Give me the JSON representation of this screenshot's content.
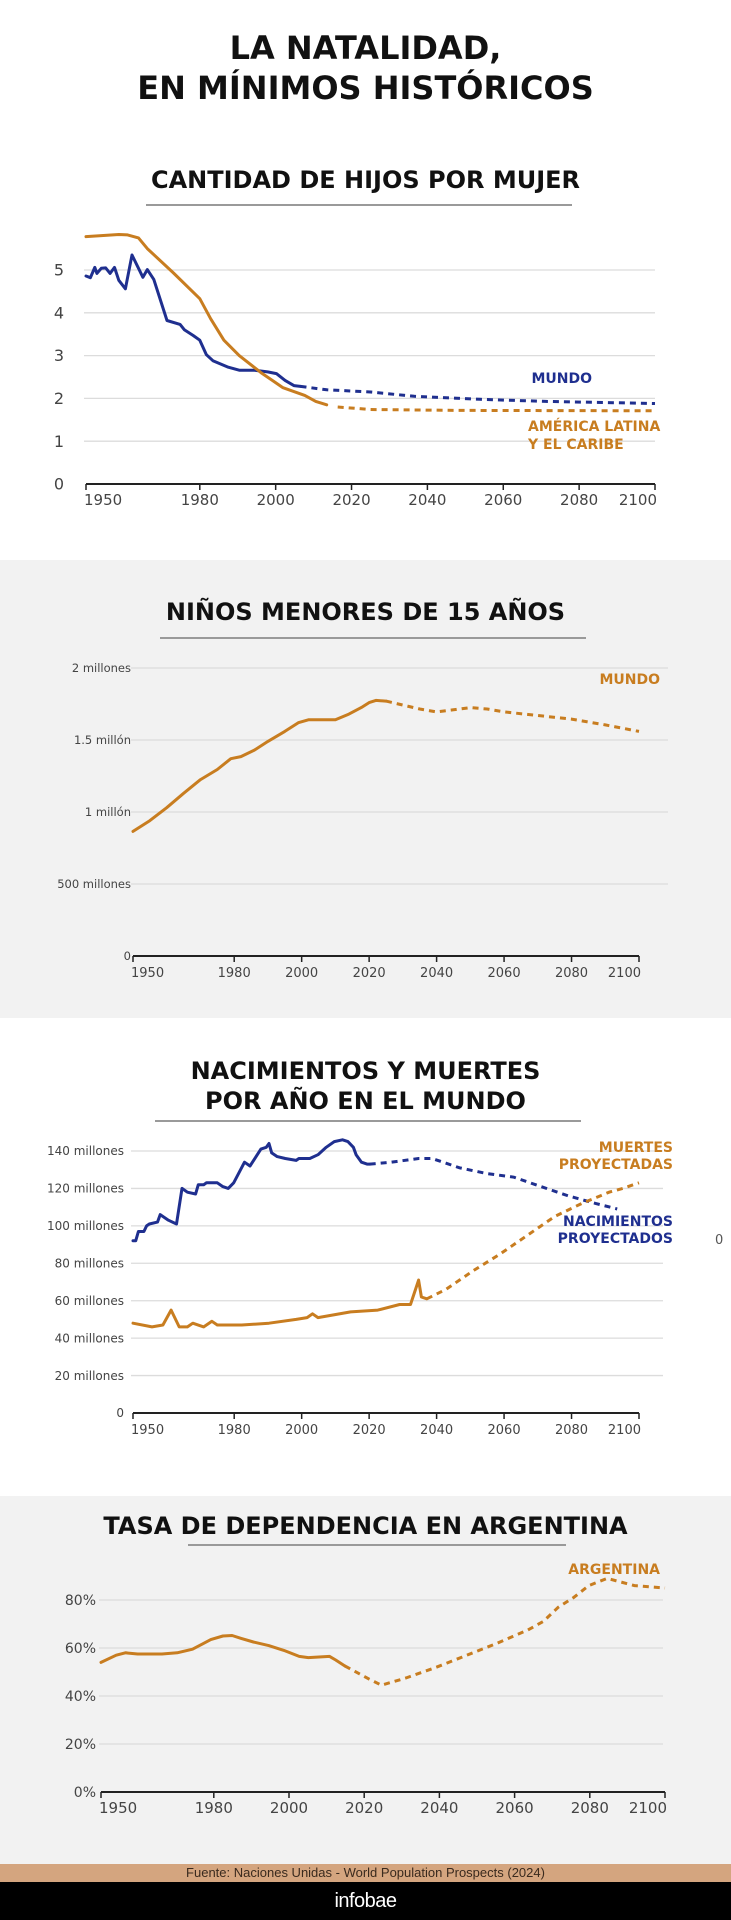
{
  "header": {
    "title_line1": "LA NATALIDAD,",
    "title_line2": "EN MÍNIMOS HISTÓRICOS"
  },
  "colors": {
    "blue": "#1f2f8f",
    "orange": "#c87d20",
    "grid": "#dcdcdc",
    "axis": "#222222",
    "tick_text": "#444444",
    "source_bar": "#d4a57f",
    "brand_bar": "#000000",
    "gray_bg": "#f2f2f2"
  },
  "stray_text": "0",
  "footer": {
    "source": "Fuente: Naciones Unidas - World Population Prospects (2024)",
    "brand": "infobae"
  },
  "chart_data": [
    {
      "type": "line",
      "title": "CANTIDAD DE HIJOS POR MUJER",
      "xlabel": "",
      "ylabel": "",
      "xlim": [
        1950,
        2100
      ],
      "ylim": [
        0,
        5.8
      ],
      "x_ticks": [
        1950,
        1980,
        2000,
        2020,
        2040,
        2060,
        2080,
        2100
      ],
      "y_ticks": [
        0,
        1,
        2,
        3,
        4,
        5
      ],
      "y_tick_labels": [
        "0",
        "1",
        "2",
        "3",
        "4",
        "5"
      ],
      "grid": true,
      "series": [
        {
          "name": "MUNDO",
          "label_lines": [
            "MUNDO"
          ],
          "color_key": "blue",
          "observed": [
            [
              1950,
              4.86
            ],
            [
              1952,
              4.82
            ],
            [
              1954,
              5.06
            ],
            [
              1955,
              4.92
            ],
            [
              1957,
              5.04
            ],
            [
              1959,
              5.05
            ],
            [
              1961,
              4.92
            ],
            [
              1963,
              5.06
            ],
            [
              1965,
              4.76
            ],
            [
              1968,
              4.56
            ],
            [
              1971,
              5.35
            ],
            [
              1976,
              4.83
            ],
            [
              1978,
              5.01
            ],
            [
              1981,
              4.78
            ],
            [
              1987,
              3.82
            ],
            [
              1993,
              3.73
            ],
            [
              1995,
              3.6
            ],
            [
              1999,
              3.47
            ],
            [
              2002,
              3.36
            ],
            [
              2005,
              3.02
            ],
            [
              2008,
              2.88
            ],
            [
              2015,
              2.73
            ],
            [
              2020,
              2.66
            ],
            [
              2027,
              2.66
            ],
            [
              2033,
              2.62
            ],
            [
              2037,
              2.58
            ],
            [
              2041,
              2.42
            ],
            [
              2045,
              2.3
            ],
            [
              2048,
              2.28
            ]
          ],
          "projected": [
            [
              2048,
              2.28
            ],
            [
              2060,
              2.2
            ],
            [
              2080,
              2.15
            ],
            [
              2100,
              2.05
            ],
            [
              2130,
              1.98
            ],
            [
              2160,
              1.93
            ],
            [
              2210,
              1.88
            ]
          ]
        },
        {
          "name": "AMÉRICA LATINA Y EL CARIBE",
          "label_lines": [
            "AMÉRICA LATINA",
            "Y EL CARIBE"
          ],
          "color_key": "orange",
          "observed": [
            [
              1950,
              5.78
            ],
            [
              1965,
              5.83
            ],
            [
              1969,
              5.82
            ],
            [
              1974,
              5.75
            ],
            [
              1978,
              5.5
            ],
            [
              1990,
              4.93
            ],
            [
              2002,
              4.33
            ],
            [
              2007,
              3.86
            ],
            [
              2013,
              3.36
            ],
            [
              2020,
              3.0
            ],
            [
              2030,
              2.6
            ],
            [
              2040,
              2.25
            ],
            [
              2050,
              2.07
            ],
            [
              2055,
              1.93
            ],
            [
              2060,
              1.85
            ]
          ],
          "projected": [
            [
              2065,
              1.8
            ],
            [
              2080,
              1.74
            ],
            [
              2120,
              1.72
            ],
            [
              2210,
              1.71
            ]
          ]
        }
      ],
      "note": "x values above are in chart-internal compressed units beyond 2023; see x_map"
    },
    {
      "type": "line",
      "title": "NIÑOS MENORES DE 15 AÑOS",
      "xlabel": "",
      "ylabel": "",
      "xlim": [
        1950,
        2100
      ],
      "ylim": [
        0,
        2000
      ],
      "y_units": "millones",
      "x_ticks": [
        1950,
        1980,
        2000,
        2020,
        2040,
        2060,
        2080,
        2100
      ],
      "y_ticks": [
        0,
        500,
        1000,
        1500,
        2000
      ],
      "y_tick_labels": [
        "0",
        "500 millones",
        "1 millón",
        "1.5 millón",
        "2 millones"
      ],
      "grid": true,
      "series": [
        {
          "name": "MUNDO",
          "label_lines": [
            "MUNDO"
          ],
          "color_key": "orange",
          "observed": [
            [
              1950,
              865
            ],
            [
              1955,
              940
            ],
            [
              1960,
              1030
            ],
            [
              1965,
              1130
            ],
            [
              1970,
              1225
            ],
            [
              1975,
              1295
            ],
            [
              1979,
              1370
            ],
            [
              1982,
              1385
            ],
            [
              1986,
              1430
            ],
            [
              1990,
              1490
            ],
            [
              1995,
              1560
            ],
            [
              1999,
              1620
            ],
            [
              2002,
              1640
            ],
            [
              2010,
              1640
            ],
            [
              2014,
              1680
            ],
            [
              2018,
              1730
            ],
            [
              2020,
              1760
            ],
            [
              2022,
              1775
            ],
            [
              2025,
              1770
            ]
          ],
          "projected": [
            [
              2025,
              1770
            ],
            [
              2035,
              1715
            ],
            [
              2040,
              1695
            ],
            [
              2045,
              1710
            ],
            [
              2050,
              1725
            ],
            [
              2055,
              1715
            ],
            [
              2060,
              1695
            ],
            [
              2070,
              1670
            ],
            [
              2080,
              1645
            ],
            [
              2090,
              1605
            ],
            [
              2100,
              1560
            ]
          ]
        }
      ]
    },
    {
      "type": "line",
      "title": "NACIMIENTOS Y MUERTES POR AÑO EN EL MUNDO",
      "title_lines": [
        "NACIMIENTOS Y MUERTES",
        "POR AÑO EN EL MUNDO"
      ],
      "xlabel": "",
      "ylabel": "",
      "xlim": [
        1950,
        2100
      ],
      "ylim": [
        0,
        140
      ],
      "y_units": "millones",
      "x_ticks": [
        1950,
        1980,
        2000,
        2020,
        2040,
        2060,
        2080,
        2100
      ],
      "y_ticks": [
        0,
        20,
        40,
        60,
        80,
        100,
        120,
        140
      ],
      "y_tick_labels": [
        "0",
        "20 millones",
        "40 millones",
        "60 millones",
        "80 millones",
        "100 millones",
        "120 millones",
        "140 millones"
      ],
      "grid": true,
      "series": [
        {
          "name": "NACIMIENTOS PROYECTADOS",
          "label_lines": [
            "NACIMIENTOS",
            "PROYECTADOS"
          ],
          "color_key": "blue",
          "observed": [
            [
              1950,
              92
            ],
            [
              1951,
              92
            ],
            [
              1952,
              97
            ],
            [
              1954,
              97
            ],
            [
              1955,
              100
            ],
            [
              1956,
              101
            ],
            [
              1959,
              102
            ],
            [
              1960,
              106
            ],
            [
              1963,
              103
            ],
            [
              1966,
              101
            ],
            [
              1968,
              120
            ],
            [
              1970,
              118
            ],
            [
              1973,
              117
            ],
            [
              1974,
              122
            ],
            [
              1976,
              122
            ],
            [
              1977,
              123
            ],
            [
              1981,
              123
            ],
            [
              1983,
              121
            ],
            [
              1985,
              120
            ],
            [
              1987,
              123
            ],
            [
              1991,
              134
            ],
            [
              1993,
              132
            ],
            [
              1997,
              141
            ],
            [
              1999,
              142
            ],
            [
              2000,
              144
            ],
            [
              2001,
              139
            ],
            [
              2003,
              137
            ],
            [
              2006,
              136
            ],
            [
              2010,
              135
            ],
            [
              2011,
              136
            ],
            [
              2015,
              136
            ],
            [
              2018,
              138
            ],
            [
              2021,
              142
            ],
            [
              2024,
              145
            ],
            [
              2027,
              146
            ],
            [
              2029,
              145
            ],
            [
              2031,
              142
            ],
            [
              2032,
              138
            ],
            [
              2034,
              134
            ],
            [
              2036,
              133
            ],
            [
              2037,
              133
            ]
          ],
          "projected": [
            [
              2037,
              133
            ],
            [
              2045,
              134
            ],
            [
              2055,
              136
            ],
            [
              2060,
              136
            ],
            [
              2070,
              131
            ],
            [
              2080,
              128
            ],
            [
              2090,
              126
            ],
            [
              2100,
              121
            ],
            [
              2110,
              116
            ],
            [
              2120,
              112
            ],
            [
              2128,
              109
            ]
          ]
        },
        {
          "name": "MUERTES PROYECTADAS",
          "label_lines": [
            "MUERTES",
            "PROYECTADAS"
          ],
          "color_key": "orange",
          "observed": [
            [
              1950,
              48
            ],
            [
              1957,
              46
            ],
            [
              1961,
              47
            ],
            [
              1964,
              55
            ],
            [
              1967,
              46
            ],
            [
              1970,
              46
            ],
            [
              1972,
              48
            ],
            [
              1976,
              46
            ],
            [
              1979,
              49
            ],
            [
              1981,
              47
            ],
            [
              1990,
              47
            ],
            [
              2000,
              48
            ],
            [
              2010,
              50
            ],
            [
              2014,
              51
            ],
            [
              2016,
              53
            ],
            [
              2018,
              51
            ],
            [
              2030,
              54
            ],
            [
              2040,
              55
            ],
            [
              2048,
              58
            ],
            [
              2052,
              58
            ],
            [
              2055,
              71
            ],
            [
              2056,
              62
            ],
            [
              2058,
              61
            ]
          ],
          "projected": [
            [
              2058,
              61
            ],
            [
              2065,
              66
            ],
            [
              2075,
              76
            ],
            [
              2085,
              85
            ],
            [
              2095,
              95
            ],
            [
              2105,
              105
            ],
            [
              2115,
              112
            ],
            [
              2125,
              118
            ],
            [
              2130,
              120
            ],
            [
              2136,
              123
            ]
          ]
        }
      ]
    },
    {
      "type": "line",
      "title": "TASA DE DEPENDENCIA EN ARGENTINA",
      "xlabel": "",
      "ylabel": "",
      "xlim": [
        1950,
        2100
      ],
      "ylim": [
        0,
        80
      ],
      "y_units": "%",
      "x_ticks": [
        1950,
        1980,
        2000,
        2020,
        2040,
        2060,
        2080,
        2100
      ],
      "y_ticks": [
        0,
        20,
        40,
        60,
        80
      ],
      "y_tick_labels": [
        "0%",
        "20%",
        "40%",
        "60%",
        "80%"
      ],
      "grid": true,
      "series": [
        {
          "name": "ARGENTINA",
          "label_lines": [
            "ARGENTINA"
          ],
          "color_key": "orange",
          "observed": [
            [
              1950,
              54
            ],
            [
              1955,
              57
            ],
            [
              1958,
              58
            ],
            [
              1962,
              57.5
            ],
            [
              1970,
              57.5
            ],
            [
              1975,
              58
            ],
            [
              1980,
              59.5
            ],
            [
              1983,
              61.5
            ],
            [
              1986,
              63.5
            ],
            [
              1990,
              65
            ],
            [
              1993,
              65.2
            ],
            [
              1996,
              64
            ],
            [
              2000,
              62.5
            ],
            [
              2005,
              61
            ],
            [
              2010,
              59
            ],
            [
              2015,
              56.5
            ],
            [
              2018,
              56
            ],
            [
              2025,
              56.5
            ],
            [
              2027,
              55
            ],
            [
              2030,
              52.5
            ]
          ],
          "projected": [
            [
              2030,
              52.5
            ],
            [
              2038,
              47
            ],
            [
              2042,
              44.5
            ],
            [
              2050,
              47.5
            ],
            [
              2060,
              52
            ],
            [
              2070,
              57
            ],
            [
              2080,
              62
            ],
            [
              2090,
              67.5
            ],
            [
              2095,
              71
            ],
            [
              2100,
              77
            ],
            [
              2105,
              81
            ],
            [
              2110,
              86
            ],
            [
              2116,
              89
            ],
            [
              2125,
              86
            ],
            [
              2135,
              85
            ]
          ]
        }
      ]
    }
  ]
}
